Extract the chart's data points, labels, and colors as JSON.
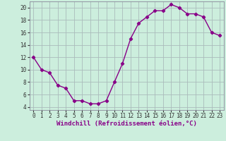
{
  "hours": [
    0,
    1,
    2,
    3,
    4,
    5,
    6,
    7,
    8,
    9,
    10,
    11,
    12,
    13,
    14,
    15,
    16,
    17,
    18,
    19,
    20,
    21,
    22,
    23
  ],
  "values": [
    12,
    10,
    9.5,
    7.5,
    7,
    5,
    5,
    4.5,
    4.5,
    5,
    8,
    11,
    15,
    17.5,
    18.5,
    19.5,
    19.5,
    20.5,
    20,
    19,
    19,
    18.5,
    16,
    15.5
  ],
  "line_color": "#880088",
  "marker": "D",
  "marker_size": 2.2,
  "bg_color": "#cceedd",
  "grid_color": "#aabbbb",
  "xlabel": "Windchill (Refroidissement éolien,°C)",
  "ylim": [
    3.5,
    21
  ],
  "xlim": [
    -0.5,
    23.5
  ],
  "yticks": [
    4,
    6,
    8,
    10,
    12,
    14,
    16,
    18,
    20
  ],
  "xtick_labels": [
    "0",
    "1",
    "2",
    "3",
    "4",
    "5",
    "6",
    "7",
    "8",
    "9",
    "10",
    "11",
    "12",
    "13",
    "14",
    "15",
    "16",
    "17",
    "18",
    "19",
    "20",
    "21",
    "22",
    "23"
  ],
  "xlabel_fontsize": 6.5,
  "tick_fontsize": 5.5,
  "line_width": 1.0
}
